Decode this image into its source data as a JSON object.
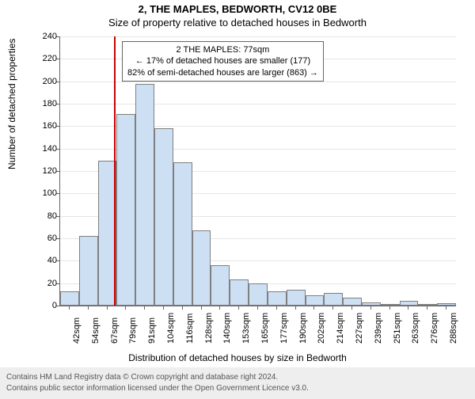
{
  "title": {
    "main": "2, THE MAPLES, BEDWORTH, CV12 0BE",
    "sub": "Size of property relative to detached houses in Bedworth"
  },
  "axes": {
    "y_title": "Number of detached properties",
    "x_title": "Distribution of detached houses by size in Bedworth",
    "ylim": [
      0,
      240
    ],
    "ytick_step": 20,
    "y_ticks": [
      0,
      20,
      40,
      60,
      80,
      100,
      120,
      140,
      160,
      180,
      200,
      220,
      240
    ],
    "x_labels": [
      "42sqm",
      "54sqm",
      "67sqm",
      "79sqm",
      "91sqm",
      "104sqm",
      "116sqm",
      "128sqm",
      "140sqm",
      "153sqm",
      "165sqm",
      "177sqm",
      "190sqm",
      "202sqm",
      "214sqm",
      "227sqm",
      "239sqm",
      "251sqm",
      "263sqm",
      "276sqm",
      "288sqm"
    ]
  },
  "histogram": {
    "type": "histogram",
    "values": [
      13,
      62,
      129,
      171,
      198,
      158,
      128,
      67,
      36,
      23,
      20,
      13,
      14,
      9,
      11,
      7,
      3,
      0,
      4,
      0,
      2
    ],
    "bar_fill": "#cddff3",
    "bar_stroke": "#7f7f7f",
    "bar_stroke_width": 1,
    "background_color": "#ffffff",
    "grid_color": "#e6e6e6"
  },
  "reference_line": {
    "color": "#cc0000",
    "bin_index_after": 2
  },
  "annotation": {
    "line1": "2 THE MAPLES: 77sqm",
    "line2": "← 17% of detached houses are smaller (177)",
    "line3": "82% of semi-detached houses are larger (863) →"
  },
  "footer": {
    "line1": "Contains HM Land Registry data © Crown copyright and database right 2024.",
    "line2": "Contains public sector information licensed under the Open Government Licence v3.0."
  },
  "fonts": {
    "title_main_size": 13,
    "title_sub_size": 13,
    "axis_title_size": 12,
    "tick_size": 11,
    "annotation_size": 11,
    "footer_size": 10
  }
}
